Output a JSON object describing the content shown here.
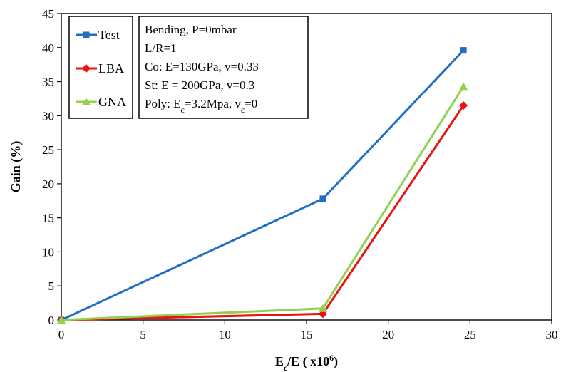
{
  "chart_data": {
    "type": "line",
    "xlabel": {
      "main": "E",
      "sub": "c",
      "mid": "/E ( x10",
      "sup": "6",
      "end": ")"
    },
    "ylabel": "Gain (%)",
    "xlim": [
      0,
      30
    ],
    "ylim": [
      0,
      45
    ],
    "xticks": [
      0,
      5,
      10,
      15,
      20,
      25,
      30
    ],
    "yticks": [
      0,
      5,
      10,
      15,
      20,
      25,
      30,
      35,
      40,
      45
    ],
    "grid": false,
    "legend_position": "top-left",
    "series": [
      {
        "name": "Test",
        "color": "#1f6fc5",
        "marker": "square",
        "points": [
          [
            0,
            0
          ],
          [
            16,
            17.8
          ],
          [
            24.6,
            39.6
          ]
        ]
      },
      {
        "name": "LBA",
        "color": "#ee1111",
        "marker": "diamond",
        "points": [
          [
            0,
            0
          ],
          [
            16,
            0.9
          ],
          [
            24.6,
            31.5
          ]
        ]
      },
      {
        "name": "GNA",
        "color": "#92d050",
        "marker": "triangle",
        "points": [
          [
            0,
            0
          ],
          [
            16,
            1.7
          ],
          [
            24.6,
            34.3
          ]
        ]
      }
    ],
    "annotation_lines": [
      {
        "parts": [
          {
            "t": "Bending, P=0mbar"
          }
        ]
      },
      {
        "parts": [
          {
            "t": "L/R=1"
          }
        ]
      },
      {
        "parts": [
          {
            "t": "Co:  E=130GPa, v=0.33"
          }
        ]
      },
      {
        "parts": [
          {
            "t": "St: E = 200GPa, v=0.3"
          }
        ]
      },
      {
        "parts": [
          {
            "t": "Poly:  E"
          },
          {
            "t": "c",
            "s": "sub"
          },
          {
            "t": "=3.2Mpa, v"
          },
          {
            "t": "c",
            "s": "sub"
          },
          {
            "t": "=0"
          }
        ]
      }
    ]
  }
}
